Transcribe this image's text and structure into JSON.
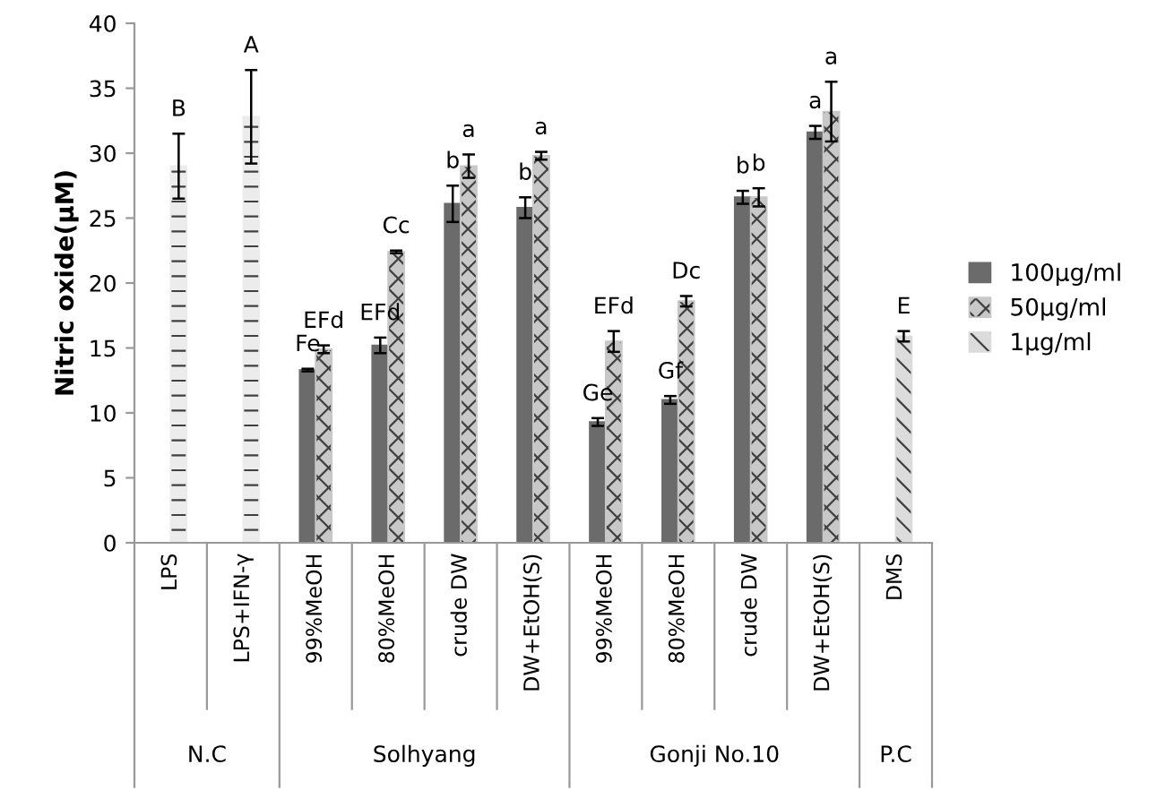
{
  "chart_data": {
    "type": "bar",
    "ylabel": "Nitric oxide(μM)",
    "categories": [
      "LPS",
      "LPS+IFN-γ",
      "99%MeOH",
      "80%MeOH",
      "crude DW",
      "DW+EtOH(S)",
      "99%MeOH",
      "80%MeOH",
      "crude DW",
      "DW+EtOH(S)",
      "DMS"
    ],
    "series": [
      {
        "name": "100μg/ml",
        "color": "#6b6b6b",
        "values": [
          null,
          null,
          13.3,
          15.2,
          26.1,
          25.8,
          9.3,
          11.0,
          26.6,
          31.6,
          null
        ],
        "errors": [
          null,
          null,
          0.1,
          0.6,
          1.4,
          0.8,
          0.3,
          0.3,
          0.5,
          0.5,
          null
        ],
        "value_labels": [
          null,
          null,
          "Fe",
          "EFd",
          "b",
          "b",
          "Ge",
          "Gf",
          "b",
          "a",
          null
        ]
      },
      {
        "name": "50μg/ml",
        "color": "#c8c8c8",
        "values": [
          null,
          null,
          14.9,
          22.4,
          29.0,
          29.8,
          15.5,
          18.6,
          26.6,
          33.2,
          null
        ],
        "errors": [
          null,
          null,
          0.3,
          0.1,
          0.9,
          0.3,
          0.8,
          0.4,
          0.7,
          2.3,
          null
        ],
        "value_labels": [
          null,
          null,
          "EFd",
          "Cc",
          "a",
          "a",
          "EFd",
          "Dc",
          "b",
          "a",
          null
        ]
      },
      {
        "name": "1μg/ml",
        "color": "#dcdcdc",
        "values": [
          null,
          null,
          null,
          null,
          null,
          null,
          null,
          null,
          null,
          null,
          15.9
        ],
        "errors": [
          null,
          null,
          null,
          null,
          null,
          null,
          null,
          null,
          null,
          null,
          0.4
        ],
        "value_labels": [
          null,
          null,
          null,
          null,
          null,
          null,
          null,
          null,
          null,
          null,
          "E"
        ]
      },
      {
        "color": "#ececec",
        "values": [
          29.0,
          32.8,
          null,
          null,
          null,
          null,
          null,
          null,
          null,
          null,
          null
        ],
        "errors": [
          2.5,
          3.6,
          null,
          null,
          null,
          null,
          null,
          null,
          null,
          null,
          null
        ],
        "value_labels": [
          "B",
          "A",
          null,
          null,
          null,
          null,
          null,
          null,
          null,
          null,
          null
        ]
      }
    ],
    "annotations": [
      "N.C",
      "Solhyang",
      "Gonji No.10",
      "P.C"
    ],
    "ylim": [
      0,
      40
    ],
    "yticks": [
      0,
      5,
      10,
      15,
      20,
      25,
      30,
      35,
      40
    ],
    "grid": false,
    "legend": "right"
  }
}
